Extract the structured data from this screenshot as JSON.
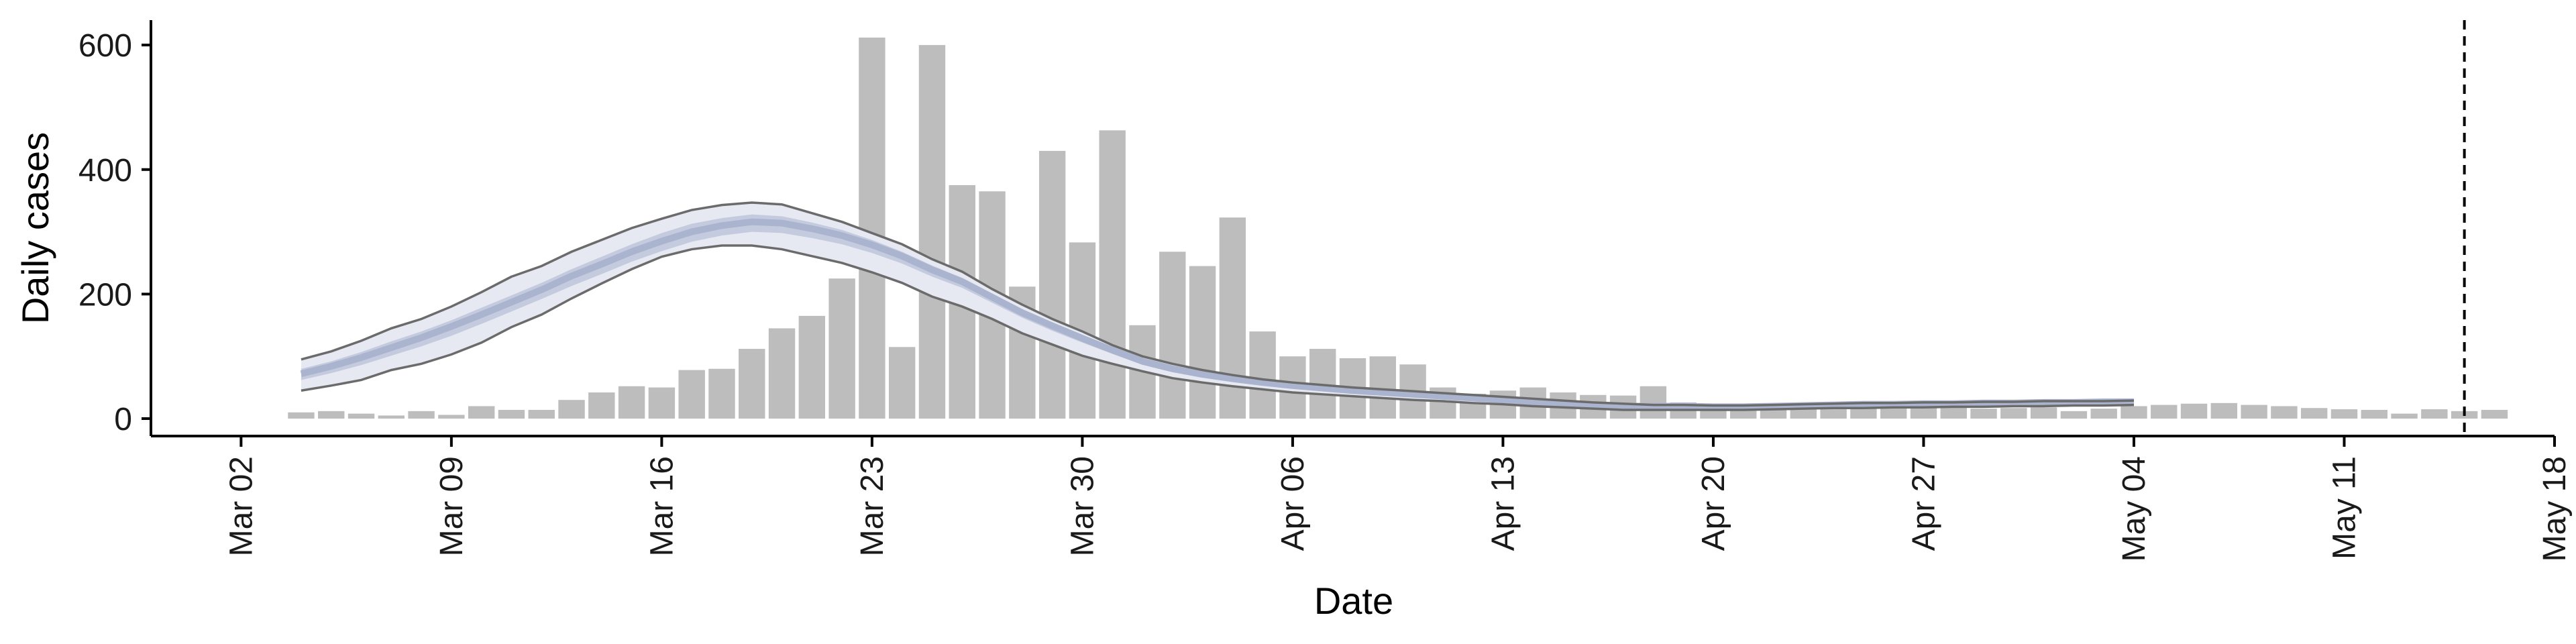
{
  "chart_data": {
    "type": "bar",
    "xlabel": "Date",
    "ylabel": "Daily cases",
    "ylim": [
      -28,
      640
    ],
    "xlim": [
      "2020-02-28",
      "2020-05-18"
    ],
    "grid": false,
    "legend": "none",
    "x_ticks": [
      {
        "date": "2020-03-02",
        "label": "Mar 02"
      },
      {
        "date": "2020-03-09",
        "label": "Mar 09"
      },
      {
        "date": "2020-03-16",
        "label": "Mar 16"
      },
      {
        "date": "2020-03-23",
        "label": "Mar 23"
      },
      {
        "date": "2020-03-30",
        "label": "Mar 30"
      },
      {
        "date": "2020-04-06",
        "label": "Apr 06"
      },
      {
        "date": "2020-04-13",
        "label": "Apr 13"
      },
      {
        "date": "2020-04-20",
        "label": "Apr 20"
      },
      {
        "date": "2020-04-27",
        "label": "Apr 27"
      },
      {
        "date": "2020-05-04",
        "label": "May 04"
      },
      {
        "date": "2020-05-11",
        "label": "May 11"
      },
      {
        "date": "2020-05-18",
        "label": "May 18"
      }
    ],
    "y_ticks": [
      0,
      200,
      400,
      600
    ],
    "bars": {
      "start_date": "2020-03-04",
      "values": [
        10,
        12,
        8,
        5,
        12,
        6,
        20,
        14,
        14,
        30,
        42,
        52,
        50,
        78,
        80,
        112,
        145,
        165,
        225,
        612,
        115,
        600,
        375,
        365,
        212,
        430,
        283,
        463,
        150,
        268,
        245,
        323,
        140,
        100,
        112,
        97,
        100,
        87,
        50,
        40,
        45,
        50,
        42,
        38,
        37,
        52,
        26,
        15,
        20,
        18,
        16,
        15,
        16,
        19,
        18,
        18,
        16,
        17,
        18,
        12,
        16,
        20,
        22,
        24,
        25,
        22,
        20,
        17,
        15,
        14,
        8,
        15,
        12,
        14
      ]
    },
    "estimate": {
      "start_date": "2020-03-04",
      "end_date": "2020-05-05",
      "outer_upper": [
        95,
        108,
        125,
        145,
        160,
        180,
        203,
        228,
        245,
        268,
        287,
        306,
        321,
        335,
        343,
        347,
        344,
        330,
        316,
        298,
        280,
        256,
        236,
        208,
        183,
        160,
        140,
        118,
        100,
        88,
        78,
        70,
        63,
        58,
        54,
        50,
        47,
        44,
        41,
        38,
        35,
        32,
        29,
        26,
        24,
        22,
        22,
        21,
        21,
        22,
        23,
        24,
        25,
        25,
        26,
        26,
        27,
        27,
        28,
        28,
        28,
        29
      ],
      "upper": [
        80,
        92,
        107,
        124,
        140,
        158,
        178,
        198,
        218,
        240,
        260,
        280,
        298,
        313,
        322,
        328,
        325,
        315,
        303,
        287,
        268,
        246,
        226,
        200,
        175,
        153,
        133,
        113,
        95,
        83,
        73,
        66,
        60,
        55,
        51,
        47,
        44,
        41,
        38,
        35,
        32,
        29,
        26,
        24,
        22,
        21,
        21,
        20,
        20,
        21,
        22,
        23,
        24,
        24,
        25,
        25,
        26,
        26,
        27,
        27,
        28,
        28
      ],
      "median": [
        72,
        84,
        98,
        114,
        130,
        148,
        167,
        187,
        207,
        229,
        248,
        268,
        285,
        300,
        310,
        316,
        314,
        305,
        294,
        279,
        261,
        239,
        220,
        195,
        170,
        149,
        129,
        110,
        92,
        80,
        71,
        64,
        58,
        53,
        49,
        45,
        42,
        39,
        36,
        33,
        30,
        27,
        24,
        22,
        20,
        20,
        20,
        19,
        19,
        20,
        21,
        22,
        23,
        23,
        24,
        24,
        25,
        25,
        26,
        26,
        27,
        27
      ],
      "lower": [
        62,
        73,
        86,
        101,
        116,
        133,
        152,
        172,
        192,
        213,
        232,
        252,
        269,
        284,
        294,
        300,
        298,
        290,
        280,
        266,
        249,
        228,
        210,
        186,
        162,
        141,
        122,
        104,
        87,
        75,
        67,
        60,
        54,
        49,
        45,
        42,
        39,
        36,
        33,
        30,
        27,
        24,
        22,
        20,
        18,
        18,
        18,
        17,
        17,
        18,
        19,
        20,
        21,
        21,
        22,
        22,
        23,
        23,
        24,
        24,
        25,
        25
      ],
      "outer_lower": [
        45,
        53,
        62,
        78,
        88,
        103,
        122,
        147,
        167,
        193,
        217,
        240,
        260,
        272,
        278,
        278,
        272,
        261,
        250,
        235,
        218,
        196,
        180,
        160,
        137,
        119,
        101,
        88,
        76,
        65,
        58,
        52,
        47,
        42,
        39,
        36,
        33,
        30,
        28,
        25,
        23,
        20,
        18,
        16,
        14,
        14,
        14,
        14,
        14,
        15,
        16,
        17,
        17,
        18,
        18,
        19,
        19,
        20,
        20,
        21,
        21,
        22
      ]
    },
    "vline_date": "2020-05-15",
    "colors": {
      "bars": "#bdbdbd",
      "band_outer": "#e7e9f2",
      "band_inner": "#c5cbde",
      "median": "#aab4cf",
      "outline": "#6b6b6b",
      "axis": "#000000",
      "vline": "#000000"
    }
  }
}
